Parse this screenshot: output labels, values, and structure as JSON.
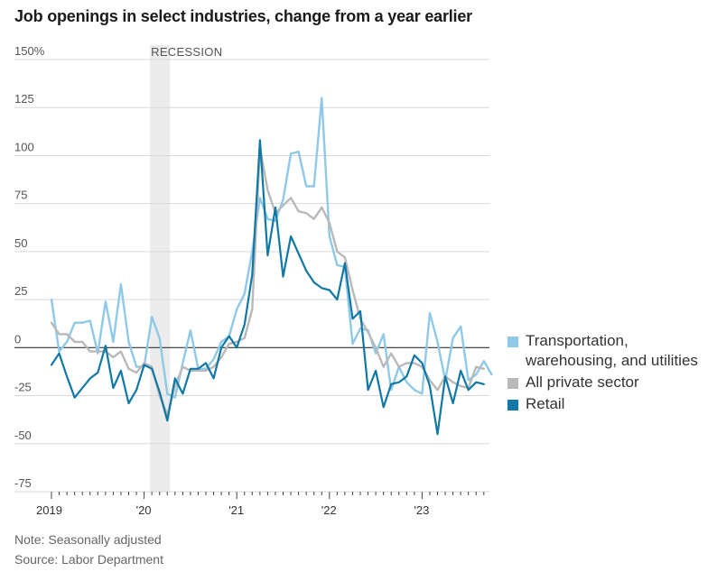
{
  "title": "Job openings in select industries, change from a year earlier",
  "recession_label": "RECESSION",
  "note": "Note: Seasonally adjusted",
  "source": "Source: Labor Department",
  "colors": {
    "transportation": "#8fc9e8",
    "all_private": "#b9b9b9",
    "retail": "#0f78a6",
    "recession": "#ececec"
  },
  "chart_data": {
    "type": "line",
    "y_ticks": [
      "150%",
      "125",
      "100",
      "75",
      "50",
      "25",
      "0",
      "-25",
      "-50",
      "-75"
    ],
    "y_tick_values": [
      150,
      125,
      100,
      75,
      50,
      25,
      0,
      -25,
      -50,
      -75
    ],
    "ylim": [
      -75,
      150
    ],
    "x_ticks": [
      "2019",
      "'20",
      "'21",
      "'22",
      "'23"
    ],
    "x_ticks_month_index": [
      0,
      12,
      24,
      36,
      48
    ],
    "recession": [
      "2020-02",
      "2020-04"
    ],
    "start_month": "2019-01",
    "series": [
      {
        "name": "Transportation, warehousing, and utilities",
        "color": "#8fc9e8",
        "values": [
          25,
          -2,
          3,
          13,
          13,
          14,
          -3,
          24,
          3,
          33,
          3,
          -10,
          -10,
          16,
          5,
          -24,
          -26,
          -8,
          9,
          -11,
          -11,
          -6,
          3,
          6,
          20,
          28,
          50,
          78,
          67,
          66,
          77,
          101,
          102,
          84,
          84,
          130,
          58,
          43,
          42,
          2,
          10,
          9,
          -3,
          7,
          -22,
          -10,
          -18,
          -22,
          -24,
          18,
          3,
          -17,
          5,
          11,
          -17,
          -14,
          -7,
          -14
        ]
      },
      {
        "name": "All private sector",
        "color": "#b9b9b9",
        "values": [
          13,
          7,
          7,
          3,
          3,
          -2,
          -2,
          -2,
          -5,
          -2,
          -11,
          -13,
          -8,
          -10,
          -25,
          -35,
          -20,
          -10,
          -12,
          -12,
          -12,
          -10,
          -5,
          2,
          3,
          5,
          20,
          104,
          82,
          70,
          74,
          78,
          71,
          70,
          67,
          73,
          65,
          50,
          47,
          30,
          15,
          8,
          0,
          -10,
          -3,
          -10,
          -8,
          -8,
          -10,
          -17,
          -22,
          -15,
          -18,
          -20,
          -21,
          -10,
          -11
        ]
      },
      {
        "name": "Retail",
        "color": "#0f78a6",
        "values": [
          -9,
          -3,
          -15,
          -26,
          -21,
          -16,
          -13,
          1,
          -21,
          -12,
          -29,
          -22,
          -9,
          -11,
          -23,
          -38,
          -16,
          -24,
          -11,
          -11,
          -8,
          -16,
          0,
          6,
          0,
          12,
          38,
          108,
          48,
          73,
          37,
          58,
          49,
          40,
          34,
          31,
          30,
          25,
          44,
          15,
          19,
          -22,
          -12,
          -31,
          -19,
          -18,
          -15,
          -4,
          -8,
          -20,
          -45,
          -15,
          -29,
          -12,
          -22,
          -18,
          -19
        ]
      }
    ]
  }
}
